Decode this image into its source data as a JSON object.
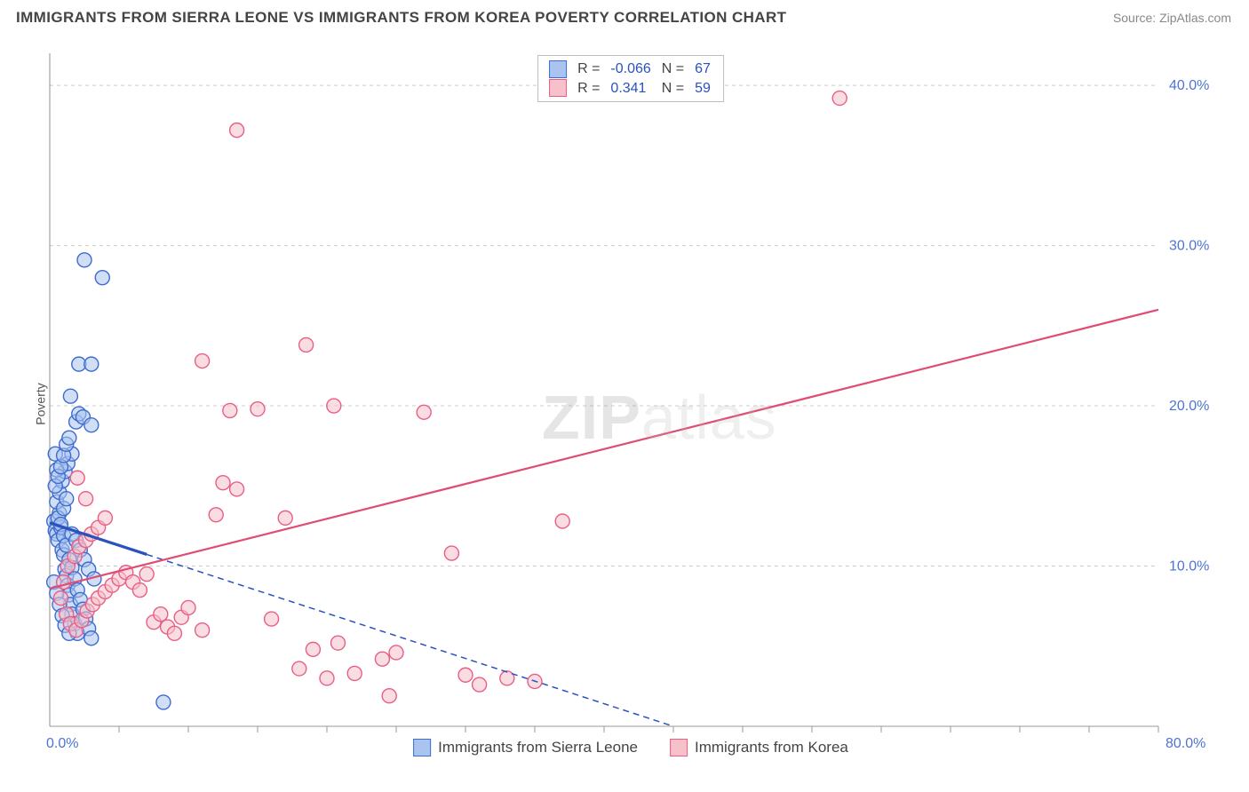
{
  "title": "IMMIGRANTS FROM SIERRA LEONE VS IMMIGRANTS FROM KOREA POVERTY CORRELATION CHART",
  "source": "Source: ZipAtlas.com",
  "ylabel": "Poverty",
  "watermark_bold": "ZIP",
  "watermark_light": "atlas",
  "chart": {
    "type": "scatter",
    "background_color": "#ffffff",
    "grid_color": "#cccccc",
    "axis_color": "#999999",
    "xlim": [
      0,
      80
    ],
    "ylim": [
      0,
      42
    ],
    "y_ticks": [
      10,
      20,
      30,
      40
    ],
    "y_tick_labels": [
      "10.0%",
      "20.0%",
      "30.0%",
      "40.0%"
    ],
    "y_tick_color": "#4d74d4",
    "x_tick_every_pct": 5,
    "x_end_label": "80.0%",
    "x_start_label": "0.0%",
    "tick_label_fontsize": 16,
    "marker_radius": 8,
    "marker_stroke_width": 1.4,
    "line_width": 2.2,
    "series": [
      {
        "name": "Immigrants from Sierra Leone",
        "fill": "#a9c5ef",
        "stroke": "#3f6bcf",
        "fill_opacity": 0.55,
        "R_label": "R =",
        "R_value": "-0.066",
        "N_label": "N =",
        "N_value": "67",
        "regression": {
          "x1": 0,
          "y1": 12.7,
          "x2": 45,
          "y2": 0,
          "dash": "7,5",
          "solid_until_x": 7,
          "stroke": "#2a52be"
        },
        "points": [
          [
            0.3,
            12.8
          ],
          [
            0.4,
            12.2
          ],
          [
            0.5,
            12.0
          ],
          [
            0.6,
            11.6
          ],
          [
            0.7,
            13.3
          ],
          [
            0.8,
            12.4
          ],
          [
            0.9,
            11.0
          ],
          [
            1.0,
            10.7
          ],
          [
            1.1,
            9.8
          ],
          [
            1.2,
            9.4
          ],
          [
            1.3,
            8.8
          ],
          [
            1.4,
            8.2
          ],
          [
            1.5,
            7.6
          ],
          [
            1.6,
            7.0
          ],
          [
            1.8,
            6.4
          ],
          [
            2.0,
            5.8
          ],
          [
            0.5,
            14.0
          ],
          [
            0.7,
            14.6
          ],
          [
            0.9,
            15.3
          ],
          [
            1.1,
            15.9
          ],
          [
            1.3,
            16.4
          ],
          [
            1.6,
            17.0
          ],
          [
            0.4,
            17.0
          ],
          [
            0.5,
            16.0
          ],
          [
            1.9,
            19.0
          ],
          [
            2.1,
            19.5
          ],
          [
            2.4,
            19.3
          ],
          [
            3.0,
            18.8
          ],
          [
            2.1,
            22.6
          ],
          [
            3.0,
            22.6
          ],
          [
            1.5,
            20.6
          ],
          [
            2.5,
            29.1
          ],
          [
            3.8,
            28.0
          ],
          [
            0.6,
            13.0
          ],
          [
            0.8,
            12.6
          ],
          [
            1.0,
            11.9
          ],
          [
            1.2,
            11.3
          ],
          [
            1.4,
            10.4
          ],
          [
            1.6,
            9.9
          ],
          [
            1.8,
            9.2
          ],
          [
            2.0,
            8.5
          ],
          [
            2.2,
            7.9
          ],
          [
            2.4,
            7.3
          ],
          [
            2.6,
            6.7
          ],
          [
            2.8,
            6.1
          ],
          [
            3.0,
            5.5
          ],
          [
            0.3,
            9.0
          ],
          [
            0.5,
            8.3
          ],
          [
            0.7,
            7.6
          ],
          [
            0.9,
            6.9
          ],
          [
            1.1,
            6.3
          ],
          [
            1.4,
            5.8
          ],
          [
            0.4,
            15.0
          ],
          [
            0.6,
            15.6
          ],
          [
            0.8,
            16.2
          ],
          [
            1.0,
            16.9
          ],
          [
            1.2,
            17.6
          ],
          [
            1.4,
            18.0
          ],
          [
            1.6,
            12.0
          ],
          [
            1.9,
            11.6
          ],
          [
            2.2,
            11.0
          ],
          [
            2.5,
            10.4
          ],
          [
            2.8,
            9.8
          ],
          [
            3.2,
            9.2
          ],
          [
            8.2,
            1.5
          ],
          [
            1.0,
            13.6
          ],
          [
            1.2,
            14.2
          ]
        ]
      },
      {
        "name": "Immigrants from Korea",
        "fill": "#f6c1ca",
        "stroke": "#e85f85",
        "fill_opacity": 0.55,
        "R_label": "R =",
        "R_value": "0.341",
        "N_label": "N =",
        "N_value": "59",
        "regression": {
          "x1": 0,
          "y1": 8.6,
          "x2": 80,
          "y2": 26.0,
          "stroke": "#e14c74"
        },
        "points": [
          [
            1.0,
            9.0
          ],
          [
            1.3,
            10.0
          ],
          [
            1.8,
            10.6
          ],
          [
            2.1,
            11.2
          ],
          [
            2.6,
            11.6
          ],
          [
            3.0,
            12.0
          ],
          [
            3.5,
            12.4
          ],
          [
            4.0,
            13.0
          ],
          [
            0.8,
            8.0
          ],
          [
            1.2,
            7.0
          ],
          [
            1.5,
            6.4
          ],
          [
            1.9,
            6.0
          ],
          [
            2.3,
            6.6
          ],
          [
            2.7,
            7.2
          ],
          [
            3.1,
            7.6
          ],
          [
            3.5,
            8.0
          ],
          [
            4.0,
            8.4
          ],
          [
            4.5,
            8.8
          ],
          [
            5.0,
            9.2
          ],
          [
            5.5,
            9.6
          ],
          [
            6.0,
            9.0
          ],
          [
            6.5,
            8.5
          ],
          [
            7.0,
            9.5
          ],
          [
            7.5,
            6.5
          ],
          [
            8.0,
            7.0
          ],
          [
            8.5,
            6.2
          ],
          [
            9.0,
            5.8
          ],
          [
            9.5,
            6.8
          ],
          [
            10.0,
            7.4
          ],
          [
            11.0,
            6.0
          ],
          [
            12.0,
            13.2
          ],
          [
            12.5,
            15.2
          ],
          [
            13.0,
            19.7
          ],
          [
            13.5,
            14.8
          ],
          [
            15.0,
            19.8
          ],
          [
            16.0,
            6.7
          ],
          [
            17.0,
            13.0
          ],
          [
            18.0,
            3.6
          ],
          [
            18.5,
            23.8
          ],
          [
            19.0,
            4.8
          ],
          [
            20.0,
            3.0
          ],
          [
            20.5,
            20.0
          ],
          [
            20.8,
            5.2
          ],
          [
            22.0,
            3.3
          ],
          [
            24.0,
            4.2
          ],
          [
            24.5,
            1.9
          ],
          [
            25.0,
            4.6
          ],
          [
            27.0,
            19.6
          ],
          [
            29.0,
            10.8
          ],
          [
            30.0,
            3.2
          ],
          [
            31.0,
            2.6
          ],
          [
            33.0,
            3.0
          ],
          [
            35.0,
            2.8
          ],
          [
            37.0,
            12.8
          ],
          [
            11.0,
            22.8
          ],
          [
            13.5,
            37.2
          ],
          [
            57.0,
            39.2
          ],
          [
            2.0,
            15.5
          ],
          [
            2.6,
            14.2
          ]
        ]
      }
    ]
  },
  "legend_bottom": [
    {
      "label": "Immigrants from Sierra Leone",
      "fill": "#a9c5ef",
      "stroke": "#3f6bcf"
    },
    {
      "label": "Immigrants from Korea",
      "fill": "#f6c1ca",
      "stroke": "#e85f85"
    }
  ]
}
